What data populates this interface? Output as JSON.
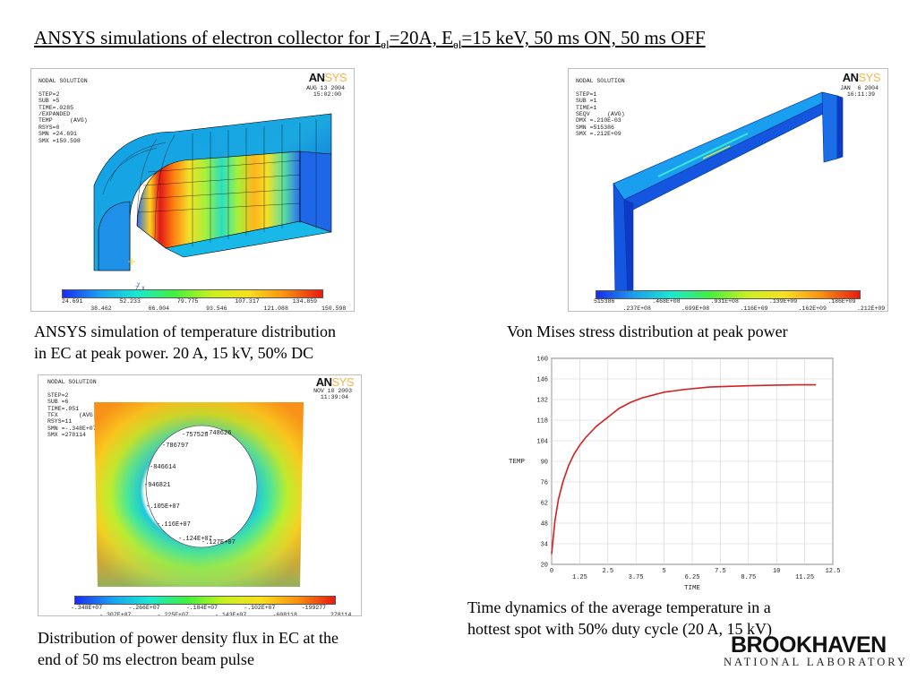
{
  "title": {
    "p1": "ANSYS simulations of electron collector for I",
    "s1": "el",
    "p2": "=20A, E",
    "s2": "el",
    "p3": "=15 keV, 50 ms ON, 50 ms OFF"
  },
  "captions": {
    "temp_a": "ANSYS simulation of temperature distribution",
    "temp_b": "in EC at peak power. 20 A, 15 kV, 50% DC",
    "stress": "Von Mises stress distribution at peak power",
    "flux_a": "Distribution of power density flux in EC at the",
    "flux_b": "end of 50 ms electron beam pulse",
    "time_a": "Time dynamics of the average temperature in a",
    "time_b": "hottest spot with 50% duty cycle (20 A, 15 kV)"
  },
  "logo": {
    "an": "AN",
    "sys": "SYS"
  },
  "panel_temp": {
    "info": "NODAL SOLUTION\n\nSTEP=2\nSUB =5\nTIME=.0285\n/EXPANDED\nTEMP     (AVG)\nRSYS=0\nSMN =24.691\nSMX =150.598",
    "date": "AUG 13 2004\n  15:02:00",
    "top_ticks": [
      "24.691",
      "52.233",
      "79.775",
      "107.317",
      "134.859"
    ],
    "bot_ticks": [
      "38.462",
      "66.004",
      "93.546",
      "121.088",
      "150.598"
    ]
  },
  "panel_stress": {
    "info": "NODAL SOLUTION\n\nSTEP=1\nSUB =1\nTIME=1\nSEQV     (AVG)\nDMX =.210E-03\nSMN =515386\nSMX =.212E+09",
    "date": "JAN  6 2004\n  16:11:39",
    "top_ticks": [
      "515386",
      ".468E+08",
      ".931E+08",
      ".139E+09",
      ".186E+09"
    ],
    "bot_ticks": [
      ".237E+08",
      ".699E+08",
      ".116E+09",
      ".162E+09",
      ".212E+09"
    ]
  },
  "panel_flux": {
    "info": "NODAL SOLUTION\n\nSTEP=2\nSUB =6\nTIME=.051\nTFX      (AVG)\nRSYS=11\nSMN =-.348E+07\nSMX =278114",
    "date": "NOV 10 2003\n  11:39:04",
    "contour_labels": [
      "-748626",
      "-757528",
      "-786797",
      "-846614",
      "-946821",
      "-.105E+07",
      "-.116E+07",
      "-.124E+07",
      "-.127E+07"
    ],
    "top_ticks": [
      "-.348E+07",
      "-.266E+07",
      "-.184E+07",
      "-.102E+07",
      "-199277"
    ],
    "bot_ticks": [
      "-.307E+07",
      "-.225E+07",
      "-.143E+07",
      "-608118",
      "278114"
    ]
  },
  "chart_data": {
    "type": "line",
    "xlabel": "TIME",
    "ylabel": "TEMP",
    "xlim": [
      0,
      12.5
    ],
    "ylim": [
      20,
      160
    ],
    "xticks": [
      "0",
      "1.25",
      "2.5",
      "3.75",
      "5",
      "6.25",
      "7.5",
      "8.75",
      "10",
      "11.25",
      "12.5"
    ],
    "yticks": [
      "20",
      "34",
      "48",
      "62",
      "76",
      "90",
      "104",
      "118",
      "132",
      "146",
      "160"
    ],
    "series": [
      {
        "color": "#d42020",
        "x": [
          0,
          0.15,
          0.3,
          0.5,
          0.75,
          1.0,
          1.25,
          1.5,
          2.0,
          2.5,
          3.0,
          3.5,
          4.0,
          4.5,
          5.0,
          5.5,
          6.0,
          7.0,
          8.0,
          9.0,
          10.0,
          11.0,
          11.75
        ],
        "y": [
          27,
          50,
          64,
          76,
          87,
          95,
          101,
          106,
          114,
          120,
          126,
          130,
          133,
          135,
          137,
          138,
          139,
          140.5,
          141,
          141.5,
          141.8,
          142,
          142
        ]
      }
    ],
    "grid": true
  },
  "brand": {
    "name": "BROOKHAVEN",
    "sub": "NATIONAL LABORATORY"
  }
}
